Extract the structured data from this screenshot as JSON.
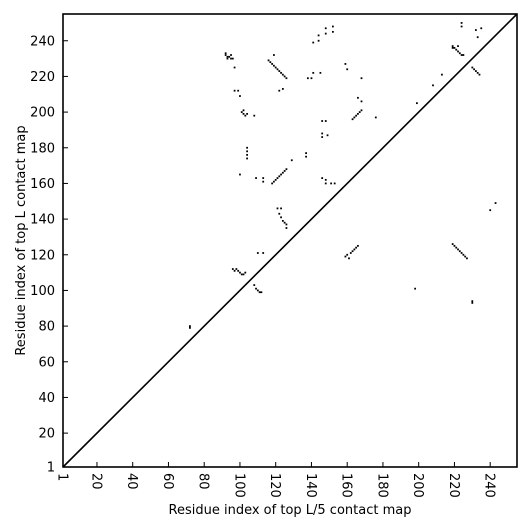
{
  "chart_data": {
    "type": "scatter",
    "title": "",
    "xlabel": "Residue index of top L/5 contact map",
    "ylabel": "Residue index of top L contact map",
    "xlim": [
      1,
      255
    ],
    "ylim": [
      1,
      255
    ],
    "x_ticks": [
      1,
      20,
      40,
      60,
      80,
      100,
      120,
      140,
      160,
      180,
      200,
      220,
      240
    ],
    "y_ticks": [
      1,
      20,
      40,
      60,
      80,
      100,
      120,
      140,
      160,
      180,
      200,
      220,
      240
    ],
    "x_tick_rotation": -90,
    "diagonal": [
      [
        1,
        1
      ],
      [
        255,
        255
      ]
    ],
    "grid": false,
    "legend": "none",
    "colors": {
      "points": "#000000",
      "diagonal": "#000000",
      "axes": "#000000",
      "background": "#ffffff"
    },
    "series": [
      {
        "values": [
          [
            92,
            233
          ],
          [
            92,
            232
          ],
          [
            93,
            231
          ],
          [
            94,
            231
          ],
          [
            95,
            230
          ],
          [
            96,
            230
          ],
          [
            93,
            230
          ],
          [
            95,
            232
          ],
          [
            97,
            225
          ],
          [
            97,
            212
          ],
          [
            99,
            212
          ],
          [
            100,
            209
          ],
          [
            101,
            200
          ],
          [
            102,
            199
          ],
          [
            103,
            198
          ],
          [
            102,
            201
          ],
          [
            104,
            199
          ],
          [
            108,
            198
          ],
          [
            104,
            180
          ],
          [
            104,
            178
          ],
          [
            104,
            176
          ],
          [
            104,
            174
          ],
          [
            100,
            165
          ],
          [
            109,
            163
          ],
          [
            113,
            163
          ],
          [
            113,
            161
          ],
          [
            96,
            112
          ],
          [
            97,
            111
          ],
          [
            98,
            112
          ],
          [
            99,
            111
          ],
          [
            100,
            110
          ],
          [
            101,
            109
          ],
          [
            102,
            109
          ],
          [
            103,
            110
          ],
          [
            108,
            103
          ],
          [
            109,
            101
          ],
          [
            110,
            100
          ],
          [
            111,
            99
          ],
          [
            112,
            99
          ],
          [
            110,
            121
          ],
          [
            113,
            121
          ],
          [
            72,
            80
          ],
          [
            72,
            79
          ],
          [
            116,
            229
          ],
          [
            117,
            228
          ],
          [
            118,
            227
          ],
          [
            119,
            226
          ],
          [
            120,
            225
          ],
          [
            121,
            224
          ],
          [
            122,
            223
          ],
          [
            123,
            222
          ],
          [
            124,
            221
          ],
          [
            125,
            220
          ],
          [
            126,
            219
          ],
          [
            119,
            232
          ],
          [
            122,
            212
          ],
          [
            124,
            213
          ],
          [
            118,
            160
          ],
          [
            119,
            161
          ],
          [
            120,
            162
          ],
          [
            121,
            163
          ],
          [
            122,
            164
          ],
          [
            123,
            165
          ],
          [
            124,
            166
          ],
          [
            125,
            167
          ],
          [
            126,
            168
          ],
          [
            129,
            173
          ],
          [
            121,
            146
          ],
          [
            123,
            146
          ],
          [
            122,
            143
          ],
          [
            123,
            141
          ],
          [
            124,
            139
          ],
          [
            125,
            138
          ],
          [
            126,
            137
          ],
          [
            126,
            135
          ],
          [
            137,
            177
          ],
          [
            137,
            175
          ],
          [
            138,
            219
          ],
          [
            140,
            219
          ],
          [
            141,
            222
          ],
          [
            145,
            222
          ],
          [
            141,
            239
          ],
          [
            144,
            240
          ],
          [
            144,
            243
          ],
          [
            148,
            244
          ],
          [
            148,
            247
          ],
          [
            152,
            245
          ],
          [
            152,
            248
          ],
          [
            146,
            195
          ],
          [
            148,
            195
          ],
          [
            146,
            188
          ],
          [
            146,
            186
          ],
          [
            149,
            187
          ],
          [
            146,
            163
          ],
          [
            148,
            162
          ],
          [
            148,
            160
          ],
          [
            151,
            160
          ],
          [
            153,
            160
          ],
          [
            159,
            227
          ],
          [
            160,
            224
          ],
          [
            163,
            196
          ],
          [
            164,
            197
          ],
          [
            165,
            198
          ],
          [
            166,
            199
          ],
          [
            167,
            200
          ],
          [
            168,
            201
          ],
          [
            166,
            208
          ],
          [
            168,
            206
          ],
          [
            168,
            219
          ],
          [
            176,
            197
          ],
          [
            159,
            119
          ],
          [
            160,
            120
          ],
          [
            161,
            118
          ],
          [
            162,
            121
          ],
          [
            163,
            122
          ],
          [
            164,
            123
          ],
          [
            165,
            124
          ],
          [
            166,
            125
          ],
          [
            198,
            101
          ],
          [
            199,
            205
          ],
          [
            208,
            215
          ],
          [
            213,
            221
          ],
          [
            219,
            237
          ],
          [
            220,
            236
          ],
          [
            221,
            235
          ],
          [
            222,
            234
          ],
          [
            223,
            233
          ],
          [
            224,
            232
          ],
          [
            225,
            232
          ],
          [
            219,
            236
          ],
          [
            222,
            237
          ],
          [
            224,
            250
          ],
          [
            224,
            248
          ],
          [
            230,
            225
          ],
          [
            231,
            224
          ],
          [
            232,
            223
          ],
          [
            233,
            222
          ],
          [
            234,
            221
          ],
          [
            232,
            246
          ],
          [
            233,
            242
          ],
          [
            235,
            247
          ],
          [
            219,
            126
          ],
          [
            220,
            125
          ],
          [
            221,
            124
          ],
          [
            222,
            123
          ],
          [
            223,
            122
          ],
          [
            224,
            121
          ],
          [
            225,
            120
          ],
          [
            226,
            119
          ],
          [
            227,
            118
          ],
          [
            230,
            94
          ],
          [
            230,
            93
          ],
          [
            240,
            145
          ],
          [
            243,
            149
          ]
        ]
      }
    ]
  }
}
